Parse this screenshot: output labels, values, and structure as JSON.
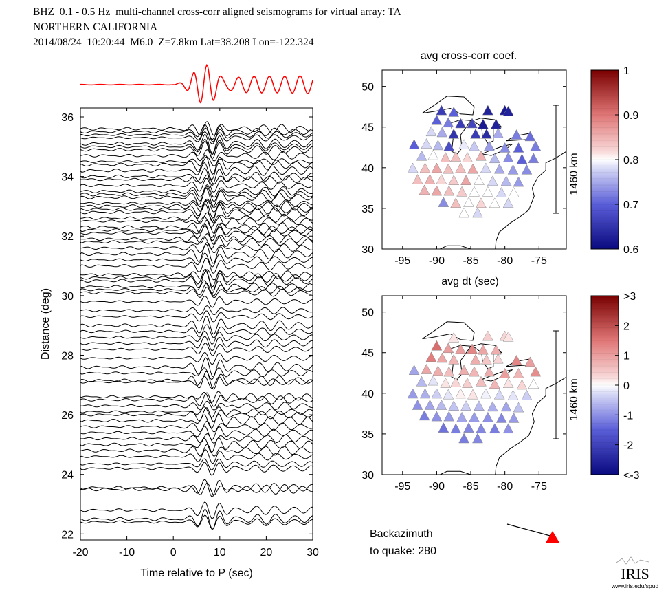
{
  "header": {
    "line1": "BHZ  0.1 - 0.5 Hz  multi-channel cross-corr aligned seismograms for virtual array: TA",
    "line2": "NORTHERN CALIFORNIA",
    "line3": "2014/08/24  10:20:44  M6.0  Z=7.8km Lat=38.208 Lon=-122.324"
  },
  "chart_data": [
    {
      "type": "line",
      "title": "",
      "xlabel": "Time relative to P (sec)",
      "ylabel": "Distance (deg)",
      "xlim": [
        -20,
        30
      ],
      "ylim": [
        21.8,
        36.3
      ],
      "xticks": [
        -20,
        -10,
        0,
        10,
        20,
        30
      ],
      "yticks": [
        22,
        24,
        26,
        28,
        30,
        32,
        34,
        36
      ],
      "stack_trace_color": "#ff0000",
      "trace_color": "#000000",
      "p_arrival_wave_peak_sec": 7,
      "trace_distances": [
        22.4,
        22.5,
        22.8,
        23.5,
        23.55,
        24.2,
        24.35,
        24.6,
        24.8,
        25.0,
        25.2,
        25.4,
        25.6,
        25.8,
        26.0,
        26.1,
        26.3,
        26.5,
        26.6,
        27.1,
        27.15,
        27.4,
        27.6,
        27.9,
        28.2,
        28.4,
        28.6,
        28.8,
        29.0,
        29.3,
        29.5,
        29.8,
        30.1,
        30.2,
        30.3,
        30.5,
        30.6,
        30.7,
        31.0,
        31.2,
        31.4,
        31.6,
        31.8,
        31.9,
        32.1,
        32.2,
        32.3,
        32.5,
        32.6,
        32.8,
        32.9,
        33.0,
        33.1,
        33.3,
        33.4,
        33.5,
        33.7,
        33.9,
        34.0,
        34.2,
        34.4,
        34.5,
        34.7,
        34.9,
        35.0,
        35.1,
        35.3,
        35.4,
        35.5,
        35.6
      ]
    },
    {
      "type": "scatter",
      "title": "avg cross-corr coef.",
      "xlabel": "",
      "ylabel": "",
      "xlim": [
        -98,
        -71
      ],
      "ylim": [
        30,
        52
      ],
      "xticks": [
        -95,
        -90,
        -85,
        -80,
        -75
      ],
      "yticks": [
        30,
        35,
        40,
        45,
        50
      ],
      "scale_bar": "1460 km",
      "colorbar": {
        "min": 0.6,
        "max": 1,
        "ticks": [
          "1",
          "0.9",
          "0.8",
          "0.7",
          "0.6"
        ]
      },
      "stations": [
        {
          "lon": -89.3,
          "lat": 47.0,
          "v": 0.66
        },
        {
          "lon": -87.5,
          "lat": 46.8,
          "v": 0.7
        },
        {
          "lon": -82.5,
          "lat": 47.0,
          "v": 0.63
        },
        {
          "lon": -80.0,
          "lat": 47.0,
          "v": 0.62
        },
        {
          "lon": -79.5,
          "lat": 46.9,
          "v": 0.63
        },
        {
          "lon": -90.0,
          "lat": 45.8,
          "v": 0.7
        },
        {
          "lon": -88.3,
          "lat": 45.5,
          "v": 0.72
        },
        {
          "lon": -86.5,
          "lat": 45.4,
          "v": 0.66
        },
        {
          "lon": -84.8,
          "lat": 45.4,
          "v": 0.67
        },
        {
          "lon": -83.2,
          "lat": 45.3,
          "v": 0.62
        },
        {
          "lon": -81.3,
          "lat": 45.3,
          "v": 0.63
        },
        {
          "lon": -90.8,
          "lat": 44.4,
          "v": 0.78
        },
        {
          "lon": -89.2,
          "lat": 44.3,
          "v": 0.75
        },
        {
          "lon": -87.5,
          "lat": 44.1,
          "v": 0.65
        },
        {
          "lon": -84.3,
          "lat": 44.1,
          "v": 0.66
        },
        {
          "lon": -82.7,
          "lat": 44.1,
          "v": 0.64
        },
        {
          "lon": -81.0,
          "lat": 44.2,
          "v": 0.75
        },
        {
          "lon": -78.3,
          "lat": 44.0,
          "v": 0.72
        },
        {
          "lon": -76.3,
          "lat": 43.8,
          "v": 0.71
        },
        {
          "lon": -93.3,
          "lat": 42.8,
          "v": 0.7
        },
        {
          "lon": -91.5,
          "lat": 42.9,
          "v": 0.78
        },
        {
          "lon": -89.8,
          "lat": 42.7,
          "v": 0.76
        },
        {
          "lon": -88.2,
          "lat": 42.6,
          "v": 0.68
        },
        {
          "lon": -86.0,
          "lat": 42.8,
          "v": 0.79
        },
        {
          "lon": -84.5,
          "lat": 42.6,
          "v": 0.77
        },
        {
          "lon": -82.3,
          "lat": 42.6,
          "v": 0.74
        },
        {
          "lon": -80.0,
          "lat": 42.4,
          "v": 0.73
        },
        {
          "lon": -78.0,
          "lat": 42.4,
          "v": 0.7
        },
        {
          "lon": -75.5,
          "lat": 42.6,
          "v": 0.72
        },
        {
          "lon": -92.2,
          "lat": 41.4,
          "v": 0.76
        },
        {
          "lon": -90.5,
          "lat": 41.5,
          "v": 0.8
        },
        {
          "lon": -88.7,
          "lat": 41.2,
          "v": 0.84
        },
        {
          "lon": -87.2,
          "lat": 41.3,
          "v": 0.84
        },
        {
          "lon": -85.5,
          "lat": 41.2,
          "v": 0.82
        },
        {
          "lon": -83.5,
          "lat": 41.4,
          "v": 0.85
        },
        {
          "lon": -81.5,
          "lat": 41.1,
          "v": 0.76
        },
        {
          "lon": -79.5,
          "lat": 41.2,
          "v": 0.73
        },
        {
          "lon": -77.5,
          "lat": 41.0,
          "v": 0.7
        },
        {
          "lon": -75.8,
          "lat": 41.1,
          "v": 0.72
        },
        {
          "lon": -93.5,
          "lat": 39.9,
          "v": 0.78
        },
        {
          "lon": -91.7,
          "lat": 39.9,
          "v": 0.84
        },
        {
          "lon": -90.0,
          "lat": 39.9,
          "v": 0.86
        },
        {
          "lon": -88.3,
          "lat": 39.8,
          "v": 0.84
        },
        {
          "lon": -86.5,
          "lat": 39.9,
          "v": 0.84
        },
        {
          "lon": -84.7,
          "lat": 39.8,
          "v": 0.86
        },
        {
          "lon": -82.8,
          "lat": 39.9,
          "v": 0.78
        },
        {
          "lon": -80.8,
          "lat": 39.8,
          "v": 0.75
        },
        {
          "lon": -78.8,
          "lat": 39.7,
          "v": 0.74
        },
        {
          "lon": -76.8,
          "lat": 39.7,
          "v": 0.73
        },
        {
          "lon": -92.8,
          "lat": 38.5,
          "v": 0.84
        },
        {
          "lon": -91.0,
          "lat": 38.5,
          "v": 0.85
        },
        {
          "lon": -89.3,
          "lat": 38.5,
          "v": 0.82
        },
        {
          "lon": -87.5,
          "lat": 38.4,
          "v": 0.83
        },
        {
          "lon": -85.7,
          "lat": 38.4,
          "v": 0.86
        },
        {
          "lon": -83.8,
          "lat": 38.4,
          "v": 0.8
        },
        {
          "lon": -81.8,
          "lat": 38.3,
          "v": 0.78
        },
        {
          "lon": -79.8,
          "lat": 38.3,
          "v": 0.76
        },
        {
          "lon": -78.0,
          "lat": 38.2,
          "v": 0.74
        },
        {
          "lon": -91.8,
          "lat": 37.2,
          "v": 0.85
        },
        {
          "lon": -90.0,
          "lat": 37.1,
          "v": 0.86
        },
        {
          "lon": -88.2,
          "lat": 37.1,
          "v": 0.84
        },
        {
          "lon": -86.3,
          "lat": 37.0,
          "v": 0.83
        },
        {
          "lon": -84.5,
          "lat": 37.0,
          "v": 0.8
        },
        {
          "lon": -82.5,
          "lat": 37.0,
          "v": 0.8
        },
        {
          "lon": -80.5,
          "lat": 36.9,
          "v": 0.78
        },
        {
          "lon": -78.7,
          "lat": 36.9,
          "v": 0.8
        },
        {
          "lon": -89.0,
          "lat": 35.7,
          "v": 0.73
        },
        {
          "lon": -87.2,
          "lat": 35.6,
          "v": 0.84
        },
        {
          "lon": -85.3,
          "lat": 35.7,
          "v": 0.8
        },
        {
          "lon": -83.5,
          "lat": 35.6,
          "v": 0.82
        },
        {
          "lon": -81.5,
          "lat": 35.6,
          "v": 0.8
        },
        {
          "lon": -79.5,
          "lat": 35.6,
          "v": 0.78
        },
        {
          "lon": -86.0,
          "lat": 34.4,
          "v": 0.8
        },
        {
          "lon": -84.0,
          "lat": 34.4,
          "v": 0.78
        }
      ]
    },
    {
      "type": "scatter",
      "title": "avg dt (sec)",
      "xlabel": "",
      "ylabel": "",
      "xlim": [
        -98,
        -71
      ],
      "ylim": [
        30,
        52
      ],
      "xticks": [
        -95,
        -90,
        -85,
        -80,
        -75
      ],
      "yticks": [
        30,
        35,
        40,
        45,
        50
      ],
      "scale_bar": "1460 km",
      "colorbar": {
        "min": -3,
        "max": 3,
        "ticks": [
          ">3",
          "2",
          "1",
          "0",
          "-1",
          "-2",
          "<-3"
        ]
      },
      "stations": [
        {
          "lon": -87.5,
          "lat": 46.8,
          "v": 0.2
        },
        {
          "lon": -82.5,
          "lat": 47.0,
          "v": 0.4
        },
        {
          "lon": -80.0,
          "lat": 47.0,
          "v": 0.3
        },
        {
          "lon": -79.5,
          "lat": 46.9,
          "v": 0.2
        },
        {
          "lon": -90.0,
          "lat": 45.8,
          "v": 1.6
        },
        {
          "lon": -88.3,
          "lat": 45.5,
          "v": 1.0
        },
        {
          "lon": -86.5,
          "lat": 45.4,
          "v": 1.0
        },
        {
          "lon": -84.8,
          "lat": 45.4,
          "v": 1.3
        },
        {
          "lon": -83.2,
          "lat": 45.3,
          "v": 0.9
        },
        {
          "lon": -81.3,
          "lat": 45.3,
          "v": 0.8
        },
        {
          "lon": -90.8,
          "lat": 44.4,
          "v": 1.4
        },
        {
          "lon": -89.2,
          "lat": 44.3,
          "v": 0.9
        },
        {
          "lon": -87.5,
          "lat": 44.1,
          "v": 0.7
        },
        {
          "lon": -84.3,
          "lat": 44.1,
          "v": 0.8
        },
        {
          "lon": -82.7,
          "lat": 44.1,
          "v": 0.5
        },
        {
          "lon": -81.0,
          "lat": 44.2,
          "v": 0.3
        },
        {
          "lon": -78.3,
          "lat": 44.0,
          "v": 1.3
        },
        {
          "lon": -76.3,
          "lat": 43.8,
          "v": 1.0
        },
        {
          "lon": -93.3,
          "lat": 42.8,
          "v": -0.8
        },
        {
          "lon": -91.5,
          "lat": 42.9,
          "v": 0.9
        },
        {
          "lon": -89.8,
          "lat": 42.7,
          "v": 0.8
        },
        {
          "lon": -88.2,
          "lat": 42.6,
          "v": 0.6
        },
        {
          "lon": -86.0,
          "lat": 42.8,
          "v": 0.8
        },
        {
          "lon": -84.5,
          "lat": 42.6,
          "v": 0.7
        },
        {
          "lon": -82.3,
          "lat": 42.6,
          "v": 0.8
        },
        {
          "lon": -80.0,
          "lat": 42.4,
          "v": 1.0
        },
        {
          "lon": -78.0,
          "lat": 42.4,
          "v": 0.7
        },
        {
          "lon": -75.5,
          "lat": 42.6,
          "v": 1.2
        },
        {
          "lon": -92.2,
          "lat": 41.4,
          "v": -0.6
        },
        {
          "lon": -90.5,
          "lat": 41.5,
          "v": -0.2
        },
        {
          "lon": -88.7,
          "lat": 41.2,
          "v": 0.2
        },
        {
          "lon": -87.2,
          "lat": 41.3,
          "v": 0.3
        },
        {
          "lon": -85.5,
          "lat": 41.2,
          "v": 0.4
        },
        {
          "lon": -83.5,
          "lat": 41.4,
          "v": 0.6
        },
        {
          "lon": -81.5,
          "lat": 41.1,
          "v": 0.7
        },
        {
          "lon": -79.5,
          "lat": 41.2,
          "v": 0.2
        },
        {
          "lon": -77.5,
          "lat": 41.0,
          "v": 0.3
        },
        {
          "lon": -75.8,
          "lat": 41.1,
          "v": 0.0
        },
        {
          "lon": -93.5,
          "lat": 39.9,
          "v": -0.9
        },
        {
          "lon": -91.7,
          "lat": 39.9,
          "v": -0.7
        },
        {
          "lon": -90.0,
          "lat": 39.9,
          "v": -0.4
        },
        {
          "lon": -88.3,
          "lat": 39.8,
          "v": -0.2
        },
        {
          "lon": -86.5,
          "lat": 39.9,
          "v": 0.1
        },
        {
          "lon": -84.7,
          "lat": 39.8,
          "v": 0.2
        },
        {
          "lon": -82.8,
          "lat": 39.9,
          "v": -0.1
        },
        {
          "lon": -80.8,
          "lat": 39.8,
          "v": -0.3
        },
        {
          "lon": -78.8,
          "lat": 39.7,
          "v": -0.2
        },
        {
          "lon": -76.8,
          "lat": 39.7,
          "v": -0.4
        },
        {
          "lon": -92.8,
          "lat": 38.5,
          "v": -1.0
        },
        {
          "lon": -91.0,
          "lat": 38.5,
          "v": -0.8
        },
        {
          "lon": -89.3,
          "lat": 38.5,
          "v": -0.6
        },
        {
          "lon": -87.5,
          "lat": 38.4,
          "v": -0.5
        },
        {
          "lon": -85.7,
          "lat": 38.4,
          "v": -0.4
        },
        {
          "lon": -83.8,
          "lat": 38.4,
          "v": -0.6
        },
        {
          "lon": -81.8,
          "lat": 38.3,
          "v": -0.7
        },
        {
          "lon": -79.8,
          "lat": 38.3,
          "v": -0.8
        },
        {
          "lon": -78.0,
          "lat": 38.2,
          "v": -0.5
        },
        {
          "lon": -91.8,
          "lat": 37.2,
          "v": -1.2
        },
        {
          "lon": -90.0,
          "lat": 37.1,
          "v": -1.0
        },
        {
          "lon": -88.2,
          "lat": 37.1,
          "v": -0.9
        },
        {
          "lon": -86.3,
          "lat": 37.0,
          "v": -0.8
        },
        {
          "lon": -84.5,
          "lat": 37.0,
          "v": -0.9
        },
        {
          "lon": -82.5,
          "lat": 37.0,
          "v": -1.0
        },
        {
          "lon": -80.5,
          "lat": 36.9,
          "v": -1.1
        },
        {
          "lon": -78.7,
          "lat": 36.9,
          "v": -0.9
        },
        {
          "lon": -89.0,
          "lat": 35.7,
          "v": -1.3
        },
        {
          "lon": -87.2,
          "lat": 35.6,
          "v": -1.2
        },
        {
          "lon": -85.3,
          "lat": 35.7,
          "v": -1.1
        },
        {
          "lon": -83.5,
          "lat": 35.6,
          "v": -1.1
        },
        {
          "lon": -81.5,
          "lat": 35.6,
          "v": -1.2
        },
        {
          "lon": -79.5,
          "lat": 35.6,
          "v": -1.0
        },
        {
          "lon": -86.0,
          "lat": 34.4,
          "v": -1.2
        },
        {
          "lon": -84.0,
          "lat": 34.4,
          "v": -1.1
        }
      ]
    }
  ],
  "backazimuth": {
    "label_line1": "Backazimuth",
    "label_line2": "to quake:  280",
    "value_deg": 280,
    "marker_color": "#ff0000"
  },
  "logo": {
    "text": "IRIS",
    "url_text": "www.iris.edu/spud"
  }
}
